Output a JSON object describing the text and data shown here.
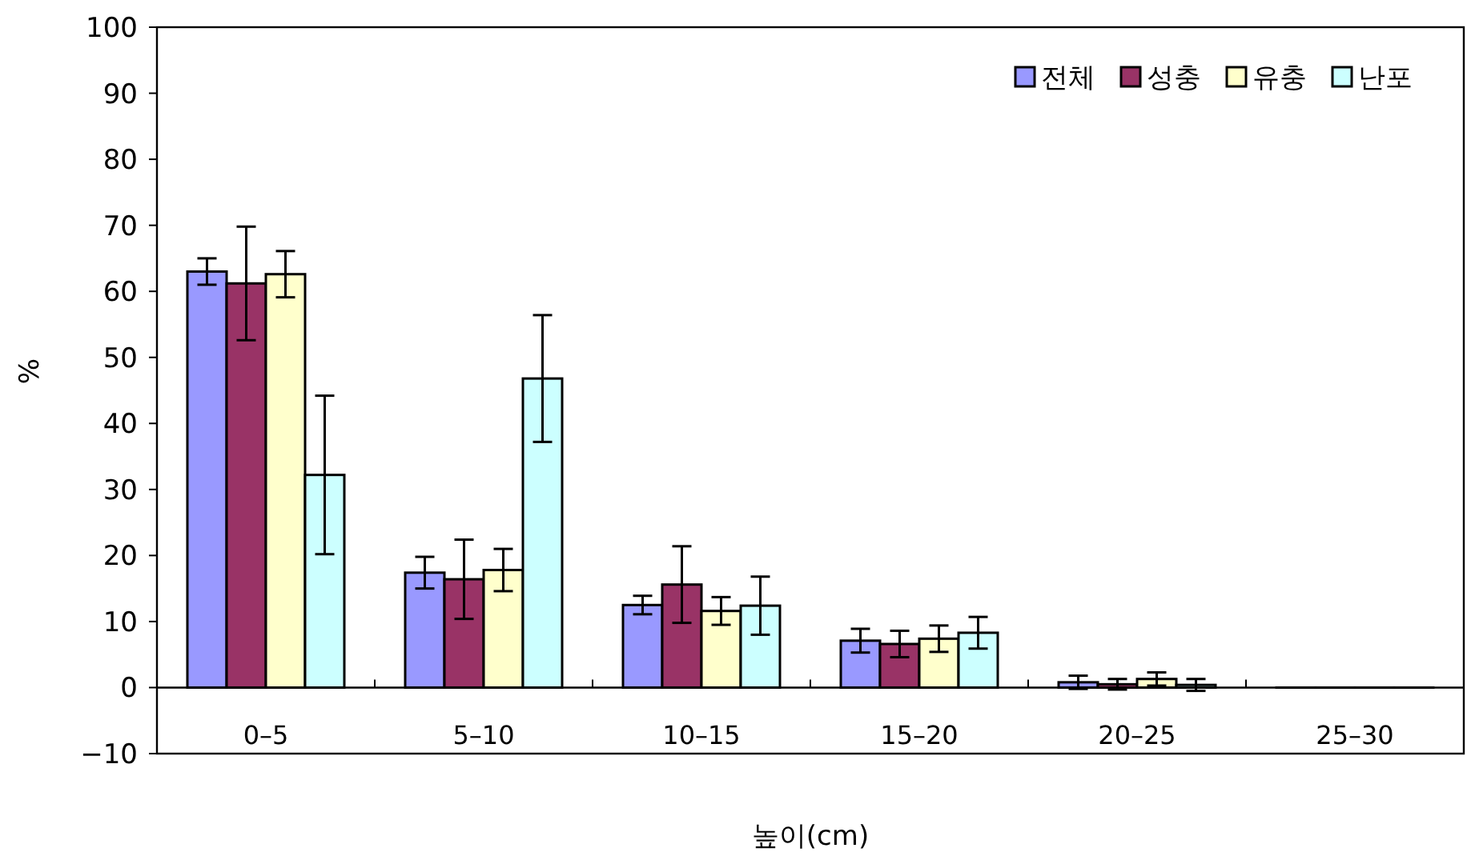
{
  "chart_data": {
    "type": "bar",
    "xlabel": "높이(cm)",
    "ylabel": "%",
    "categories": [
      "0–5",
      "5–10",
      "10–15",
      "15–20",
      "20–25",
      "25–30"
    ],
    "series": [
      {
        "name": "전체",
        "color": "#9999ff",
        "values": [
          63,
          17.4,
          12.5,
          7.1,
          0.8,
          0
        ],
        "errors": [
          2,
          2.4,
          1.4,
          1.8,
          1,
          null
        ]
      },
      {
        "name": "성충",
        "color": "#993366",
        "values": [
          61.2,
          16.4,
          15.6,
          6.6,
          0.5,
          0
        ],
        "errors": [
          8.6,
          6,
          5.8,
          2,
          0.8,
          null
        ]
      },
      {
        "name": "유충",
        "color": "#ffffcc",
        "values": [
          62.6,
          17.8,
          11.6,
          7.4,
          1.3,
          0
        ],
        "errors": [
          3.5,
          3.2,
          2.1,
          2,
          1,
          null
        ]
      },
      {
        "name": "난포",
        "color": "#ccffff",
        "values": [
          32.2,
          46.8,
          12.4,
          8.3,
          0.4,
          0
        ],
        "errors": [
          12,
          9.6,
          4.4,
          2.4,
          0.9,
          null
        ]
      }
    ],
    "ylim": [
      -10,
      100
    ],
    "yticks": [
      -10,
      0,
      10,
      20,
      30,
      40,
      50,
      60,
      70,
      80,
      90,
      100
    ],
    "legend": "top right"
  }
}
